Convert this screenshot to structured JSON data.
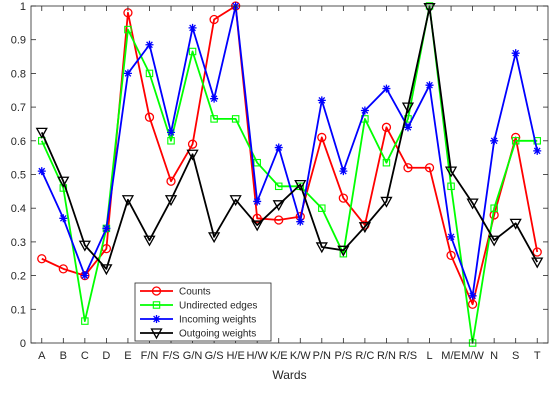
{
  "chart_data": {
    "type": "line",
    "title": "",
    "xlabel": "Wards",
    "ylabel": "",
    "ylim": [
      0,
      1
    ],
    "yticks": [
      0,
      0.1,
      0.2,
      0.3,
      0.4,
      0.5,
      0.6,
      0.7,
      0.8,
      0.9,
      1
    ],
    "ytick_labels": [
      "0",
      "0.1",
      "0.2",
      "0.3",
      "0.4",
      "0.5",
      "0.6",
      "0.7",
      "0.8",
      "0.9",
      "1"
    ],
    "grid": false,
    "legend_position": "bottom-center",
    "categories": [
      "A",
      "B",
      "C",
      "D",
      "E",
      "F/N",
      "F/S",
      "G/N",
      "G/S",
      "H/E",
      "H/W",
      "K/E",
      "K/W",
      "P/N",
      "P/S",
      "R/C",
      "R/N",
      "R/S",
      "L",
      "M/E",
      "M/W",
      "N",
      "S",
      "T"
    ],
    "series": [
      {
        "name": "Counts",
        "color": "#ff0000",
        "marker": "circle",
        "values": [
          0.25,
          0.22,
          0.2,
          0.28,
          0.98,
          0.67,
          0.48,
          0.59,
          0.96,
          1.0,
          0.37,
          0.365,
          0.375,
          0.61,
          0.43,
          0.35,
          0.64,
          0.52,
          0.52,
          0.26,
          0.115,
          0.38,
          0.61,
          0.27
        ]
      },
      {
        "name": "Undirected edges",
        "color": "#00ff00",
        "marker": "square",
        "values": [
          0.6,
          0.46,
          0.065,
          0.34,
          0.93,
          0.8,
          0.6,
          0.865,
          0.665,
          0.665,
          0.535,
          0.465,
          0.465,
          0.4,
          0.265,
          0.665,
          0.535,
          0.665,
          1.0,
          0.465,
          0.0,
          0.4,
          0.6,
          0.6
        ]
      },
      {
        "name": "Incoming weights",
        "color": "#0000ff",
        "marker": "star",
        "values": [
          0.51,
          0.37,
          0.2,
          0.34,
          0.8,
          0.885,
          0.625,
          0.935,
          0.725,
          1.0,
          0.42,
          0.58,
          0.36,
          0.72,
          0.51,
          0.69,
          0.755,
          0.64,
          0.765,
          0.315,
          0.14,
          0.6,
          0.86,
          0.57
        ]
      },
      {
        "name": "Outgoing weights",
        "color": "#000000",
        "marker": "triangle-down",
        "values": [
          0.625,
          0.48,
          0.29,
          0.22,
          0.425,
          0.305,
          0.425,
          0.56,
          0.315,
          0.425,
          0.35,
          0.41,
          0.47,
          0.285,
          0.275,
          0.345,
          0.42,
          0.7,
          0.995,
          0.51,
          0.415,
          0.305,
          0.355,
          0.24
        ]
      }
    ]
  }
}
